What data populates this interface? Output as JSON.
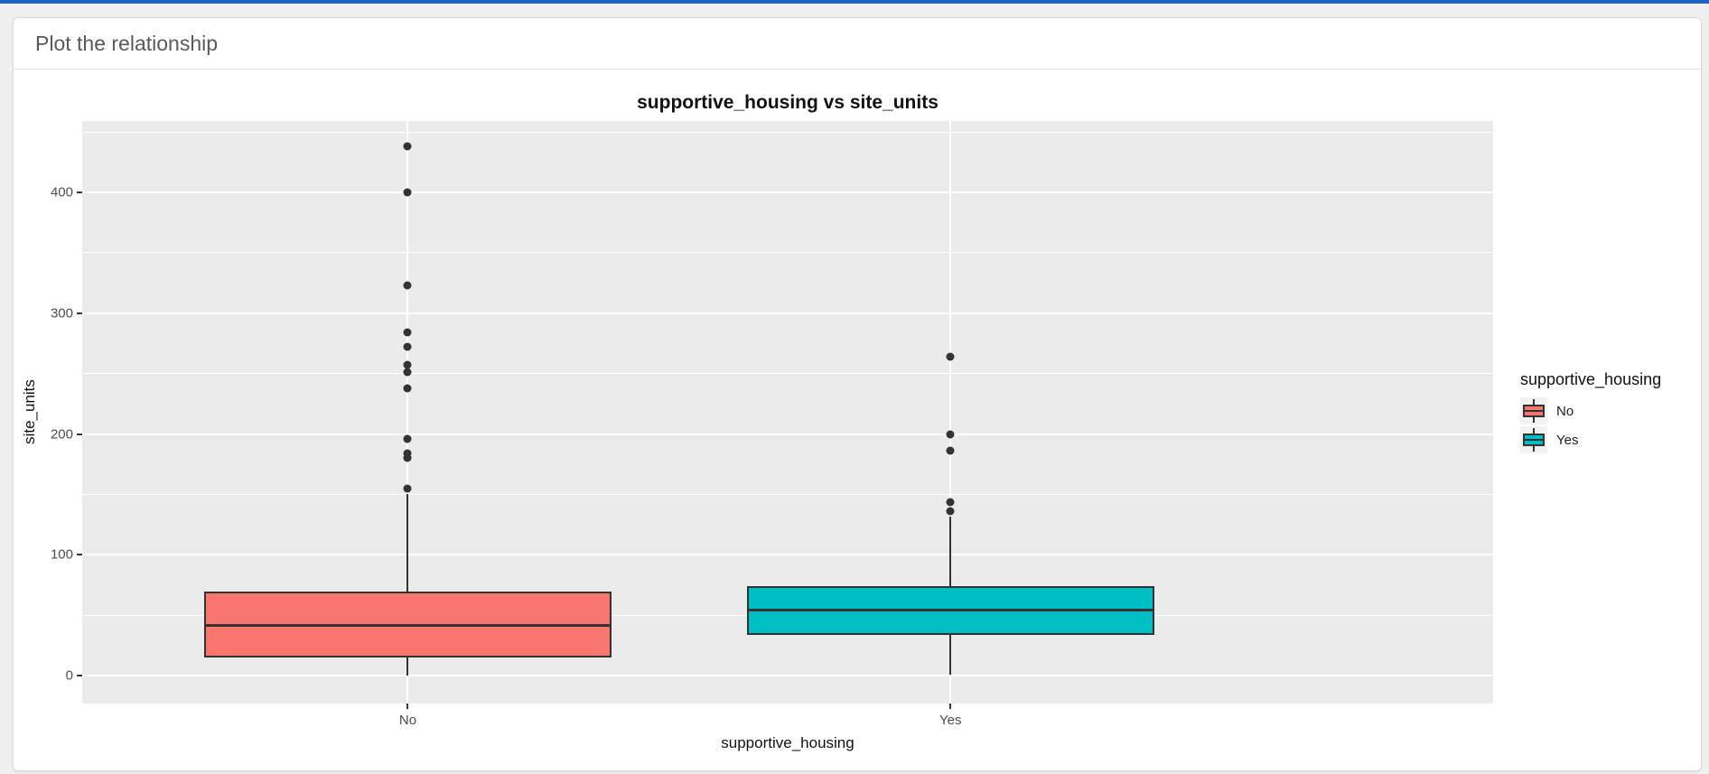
{
  "header": {
    "title": "Plot the relationship"
  },
  "colors": {
    "topbar_blue": "#2065c0",
    "panel_bg": "#ebebeb",
    "gridline": "#ffffff",
    "box_outline": "#333333",
    "outlier_point": "#333333",
    "legend_key_bg": "#f2f2f2",
    "no_fill": "#f8766d",
    "yes_fill": "#00bfc4"
  },
  "chart_data": {
    "type": "boxplot",
    "title": "supportive_housing vs site_units",
    "xlabel": "supportive_housing",
    "ylabel": "site_units",
    "categories": [
      "No",
      "Yes"
    ],
    "y_ticks": [
      0,
      100,
      200,
      300,
      400
    ],
    "y_minor_ticks": [
      50,
      150,
      250,
      350,
      450
    ],
    "ylim": [
      -23,
      459
    ],
    "grid": true,
    "legend": {
      "title": "supportive_housing",
      "position": "right",
      "entries": [
        {
          "label": "No",
          "color": "#f8766d"
        },
        {
          "label": "Yes",
          "color": "#00bfc4"
        }
      ]
    },
    "series": [
      {
        "category": "No",
        "color": "#f8766d",
        "whisker_low": 0,
        "q1": 15,
        "median": 42,
        "q3": 70,
        "whisker_high": 150,
        "outliers": [
          155,
          180,
          184,
          196,
          238,
          251,
          257,
          272,
          284,
          323,
          400,
          438
        ]
      },
      {
        "category": "Yes",
        "color": "#00bfc4",
        "whisker_low": 1,
        "q1": 34,
        "median": 54,
        "q3": 74,
        "whisker_high": 132,
        "outliers": [
          136,
          144,
          186,
          200,
          264
        ]
      }
    ]
  }
}
